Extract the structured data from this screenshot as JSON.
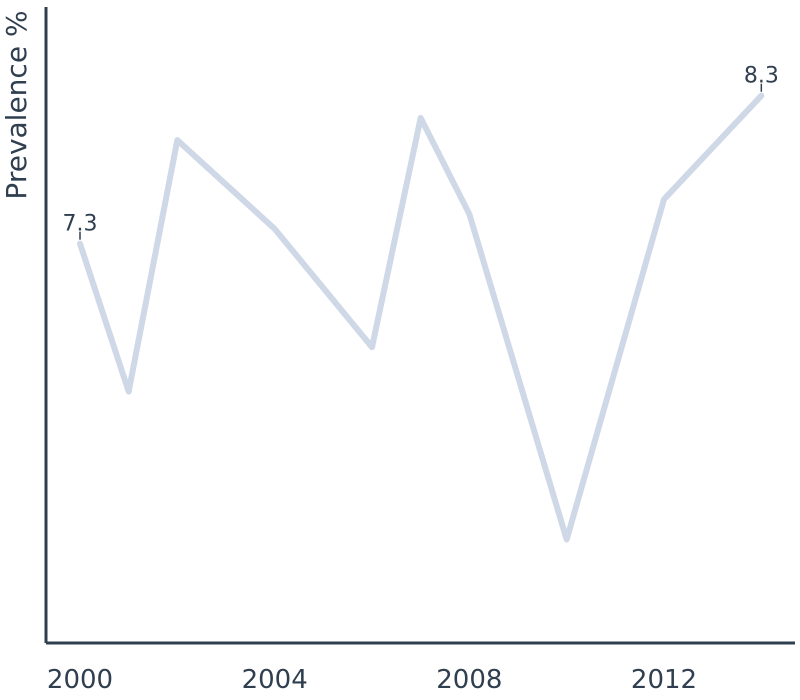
{
  "chart_data": {
    "type": "line",
    "title": "",
    "xlabel": "",
    "ylabel": "Prevalence %",
    "x": [
      2000,
      2001,
      2002,
      2004,
      2006,
      2007,
      2008,
      2010,
      2012,
      2014
    ],
    "y": [
      7.3,
      6.3,
      8.0,
      7.4,
      6.6,
      8.15,
      7.5,
      5.3,
      7.6,
      8.3
    ],
    "xlim": [
      2000,
      2015
    ],
    "ylim": [
      4.6,
      8.9
    ],
    "xticks": [
      2000,
      2004,
      2008,
      2012
    ],
    "tick_labels": [
      "2000",
      "2004",
      "2008",
      "2012"
    ],
    "annotations": [
      {
        "index": 0,
        "text": "7.3"
      },
      {
        "index": 9,
        "text": "8.3"
      }
    ],
    "grid": false,
    "legend": "none",
    "line_color": "#cfd8e6",
    "axis_color": "#2f3f4f",
    "text_color": "#2f3f4f"
  }
}
